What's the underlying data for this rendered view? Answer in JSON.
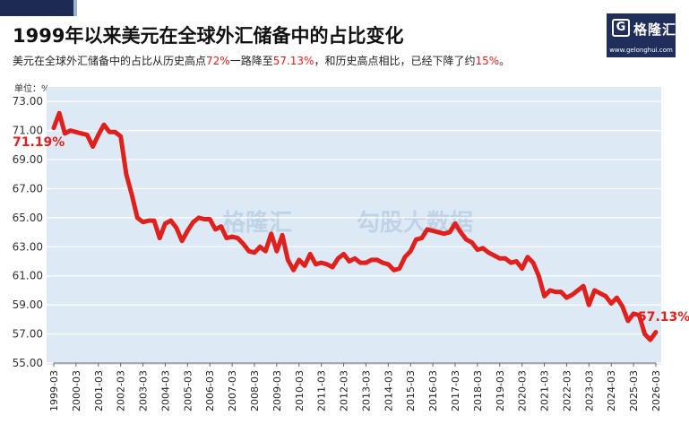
{
  "title": "1999年以来美元在全球外汇储备中的占比变化",
  "subtitle": {
    "p1": "美元在全球外汇储备中的占比从历史高点",
    "v1": "72%",
    "p2": "一路降至",
    "v2": "57.13%",
    "p3": "，和历史高点相比，已经下降了约",
    "v3": "15%",
    "p4": "。"
  },
  "logo": {
    "brand": "格隆汇",
    "mark": "G",
    "url": "www.gelonghui.com"
  },
  "watermark": {
    "left": "格隆汇",
    "right": "勾股大数据"
  },
  "colors": {
    "line": "#e0201c",
    "highlight": "#e0201c",
    "plot_bg": "#ddeaf6",
    "header": "#1c2a54"
  },
  "chart_data": {
    "type": "line",
    "title": "1999年以来美元在全球外汇储备中的占比变化",
    "unit_label": "单位：%",
    "xlabel": "",
    "ylabel": "",
    "ylim": [
      55.0,
      74.0
    ],
    "y_ticks": [
      "73.00",
      "71.00",
      "69.00",
      "67.00",
      "65.00",
      "63.00",
      "61.00",
      "59.00",
      "57.00",
      "55.00"
    ],
    "x_ticks": [
      "1999-03",
      "2000-03",
      "2001-03",
      "2002-03",
      "2003-03",
      "2004-03",
      "2005-03",
      "2006-03",
      "2007-03",
      "2008-03",
      "2009-03",
      "2010-03",
      "2011-03",
      "2012-03",
      "2013-03",
      "2014-03",
      "2015-03",
      "2016-03",
      "2017-03",
      "2018-03",
      "2019-03",
      "2020-03",
      "2021-03",
      "2022-03",
      "2023-03",
      "2024-03",
      "2025-03",
      "2026-03"
    ],
    "grid": true,
    "series": [
      {
        "values": [
          [
            "1999-03",
            71.19
          ],
          [
            "1999-06",
            72.2
          ],
          [
            "1999-09",
            70.8
          ],
          [
            "1999-12",
            71.0
          ],
          [
            "2000-03",
            70.9
          ],
          [
            "2000-06",
            70.8
          ],
          [
            "2000-09",
            70.7
          ],
          [
            "2000-12",
            69.9
          ],
          [
            "2001-03",
            70.7
          ],
          [
            "2001-06",
            71.4
          ],
          [
            "2001-09",
            70.9
          ],
          [
            "2001-12",
            70.9
          ],
          [
            "2002-03",
            70.6
          ],
          [
            "2002-06",
            68.0
          ],
          [
            "2002-09",
            66.6
          ],
          [
            "2002-12",
            65.0
          ],
          [
            "2003-03",
            64.7
          ],
          [
            "2003-06",
            64.8
          ],
          [
            "2003-09",
            64.8
          ],
          [
            "2003-12",
            63.6
          ],
          [
            "2004-03",
            64.6
          ],
          [
            "2004-06",
            64.8
          ],
          [
            "2004-09",
            64.3
          ],
          [
            "2004-12",
            63.4
          ],
          [
            "2005-03",
            64.1
          ],
          [
            "2005-06",
            64.7
          ],
          [
            "2005-09",
            65.0
          ],
          [
            "2005-12",
            64.9
          ],
          [
            "2006-03",
            64.9
          ],
          [
            "2006-06",
            64.2
          ],
          [
            "2006-09",
            64.4
          ],
          [
            "2006-12",
            63.6
          ],
          [
            "2007-03",
            63.7
          ],
          [
            "2007-06",
            63.6
          ],
          [
            "2007-09",
            63.2
          ],
          [
            "2007-12",
            62.7
          ],
          [
            "2008-03",
            62.6
          ],
          [
            "2008-06",
            63.0
          ],
          [
            "2008-09",
            62.7
          ],
          [
            "2008-12",
            63.9
          ],
          [
            "2009-03",
            62.7
          ],
          [
            "2009-06",
            63.8
          ],
          [
            "2009-09",
            62.1
          ],
          [
            "2009-12",
            61.4
          ],
          [
            "2010-03",
            62.1
          ],
          [
            "2010-06",
            61.7
          ],
          [
            "2010-09",
            62.5
          ],
          [
            "2010-12",
            61.8
          ],
          [
            "2011-03",
            61.9
          ],
          [
            "2011-06",
            61.8
          ],
          [
            "2011-09",
            61.6
          ],
          [
            "2011-12",
            62.2
          ],
          [
            "2012-03",
            62.5
          ],
          [
            "2012-06",
            62.0
          ],
          [
            "2012-09",
            62.2
          ],
          [
            "2012-12",
            61.9
          ],
          [
            "2013-03",
            61.9
          ],
          [
            "2013-06",
            62.1
          ],
          [
            "2013-09",
            62.1
          ],
          [
            "2013-12",
            61.9
          ],
          [
            "2014-03",
            61.8
          ],
          [
            "2014-06",
            61.4
          ],
          [
            "2014-09",
            61.5
          ],
          [
            "2014-12",
            62.3
          ],
          [
            "2015-03",
            62.7
          ],
          [
            "2015-06",
            63.5
          ],
          [
            "2015-09",
            63.6
          ],
          [
            "2015-12",
            64.2
          ],
          [
            "2016-03",
            64.1
          ],
          [
            "2016-06",
            64.0
          ],
          [
            "2016-09",
            63.9
          ],
          [
            "2016-12",
            64.0
          ],
          [
            "2017-03",
            64.6
          ],
          [
            "2017-06",
            64.0
          ],
          [
            "2017-09",
            63.5
          ],
          [
            "2017-12",
            63.3
          ],
          [
            "2018-03",
            62.8
          ],
          [
            "2018-06",
            62.9
          ],
          [
            "2018-09",
            62.6
          ],
          [
            "2018-12",
            62.4
          ],
          [
            "2019-03",
            62.2
          ],
          [
            "2019-06",
            62.2
          ],
          [
            "2019-09",
            61.9
          ],
          [
            "2019-12",
            62.0
          ],
          [
            "2020-03",
            61.5
          ],
          [
            "2020-06",
            62.3
          ],
          [
            "2020-09",
            61.9
          ],
          [
            "2020-12",
            61.0
          ],
          [
            "2021-03",
            59.6
          ],
          [
            "2021-06",
            60.0
          ],
          [
            "2021-09",
            59.9
          ],
          [
            "2021-12",
            59.9
          ],
          [
            "2022-03",
            59.5
          ],
          [
            "2022-06",
            59.7
          ],
          [
            "2022-09",
            60.0
          ],
          [
            "2022-12",
            60.3
          ],
          [
            "2023-03",
            59.0
          ],
          [
            "2023-06",
            60.0
          ],
          [
            "2023-09",
            59.8
          ],
          [
            "2023-12",
            59.6
          ],
          [
            "2024-03",
            59.1
          ],
          [
            "2024-06",
            59.5
          ],
          [
            "2024-09",
            58.9
          ],
          [
            "2024-12",
            57.9
          ],
          [
            "2025-03",
            58.4
          ],
          [
            "2025-06",
            58.3
          ],
          [
            "2025-09",
            57.0
          ],
          [
            "2025-12",
            56.6
          ],
          [
            "2026-03",
            57.13
          ]
        ]
      }
    ],
    "annotations": [
      {
        "text": "71.19%",
        "at": "1999-03",
        "value": 71.19
      },
      {
        "text": "57.13%",
        "at": "2026-03",
        "value": 57.13
      }
    ]
  }
}
